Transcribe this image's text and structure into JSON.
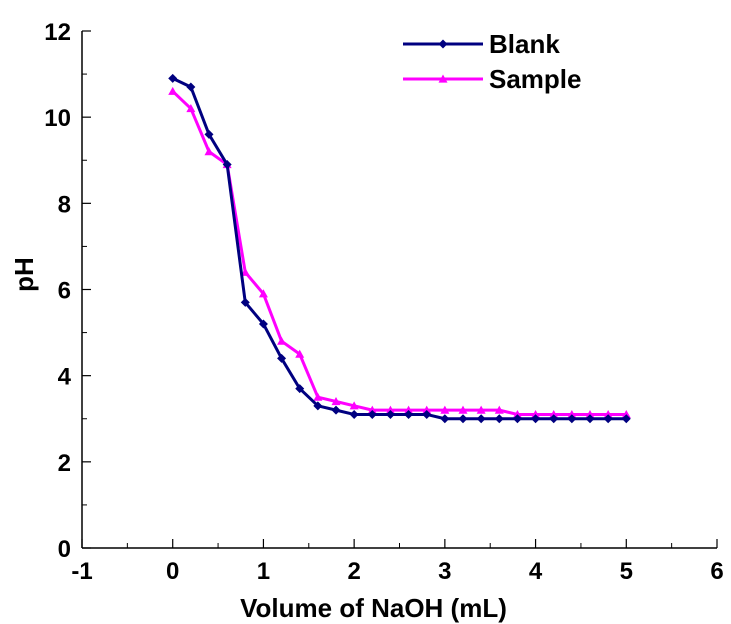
{
  "chart_data": {
    "type": "line",
    "title": "",
    "xlabel": "Volume of NaOH (mL)",
    "ylabel": "pH",
    "xlim": [
      -1,
      6
    ],
    "ylim": [
      0,
      12
    ],
    "x_ticks": [
      "-1",
      "0",
      "1",
      "2",
      "3",
      "4",
      "5",
      "6"
    ],
    "y_ticks": [
      "0",
      "2",
      "4",
      "6",
      "8",
      "10",
      "12"
    ],
    "grid": false,
    "legend_position": "top-right",
    "series": [
      {
        "name": "Blank",
        "color": "#000080",
        "marker": "diamond",
        "x": [
          0,
          0.2,
          0.4,
          0.6,
          0.8,
          1.0,
          1.2,
          1.4,
          1.6,
          1.8,
          2.0,
          2.2,
          2.4,
          2.6,
          2.8,
          3.0,
          3.2,
          3.4,
          3.6,
          3.8,
          4.0,
          4.2,
          4.4,
          4.6,
          4.8,
          5.0
        ],
        "y": [
          10.9,
          10.7,
          9.6,
          8.9,
          5.7,
          5.2,
          4.4,
          3.7,
          3.3,
          3.2,
          3.1,
          3.1,
          3.1,
          3.1,
          3.1,
          3.0,
          3.0,
          3.0,
          3.0,
          3.0,
          3.0,
          3.0,
          3.0,
          3.0,
          3.0,
          3.0
        ]
      },
      {
        "name": "Sample",
        "color": "#FF00FF",
        "marker": "triangle",
        "x": [
          0,
          0.2,
          0.4,
          0.6,
          0.8,
          1.0,
          1.2,
          1.4,
          1.6,
          1.8,
          2.0,
          2.2,
          2.4,
          2.6,
          2.8,
          3.0,
          3.2,
          3.4,
          3.6,
          3.8,
          4.0,
          4.2,
          4.4,
          4.6,
          4.8,
          5.0
        ],
        "y": [
          10.6,
          10.2,
          9.2,
          8.9,
          6.4,
          5.9,
          4.8,
          4.5,
          3.5,
          3.4,
          3.3,
          3.2,
          3.2,
          3.2,
          3.2,
          3.2,
          3.2,
          3.2,
          3.2,
          3.1,
          3.1,
          3.1,
          3.1,
          3.1,
          3.1,
          3.1
        ]
      }
    ]
  }
}
